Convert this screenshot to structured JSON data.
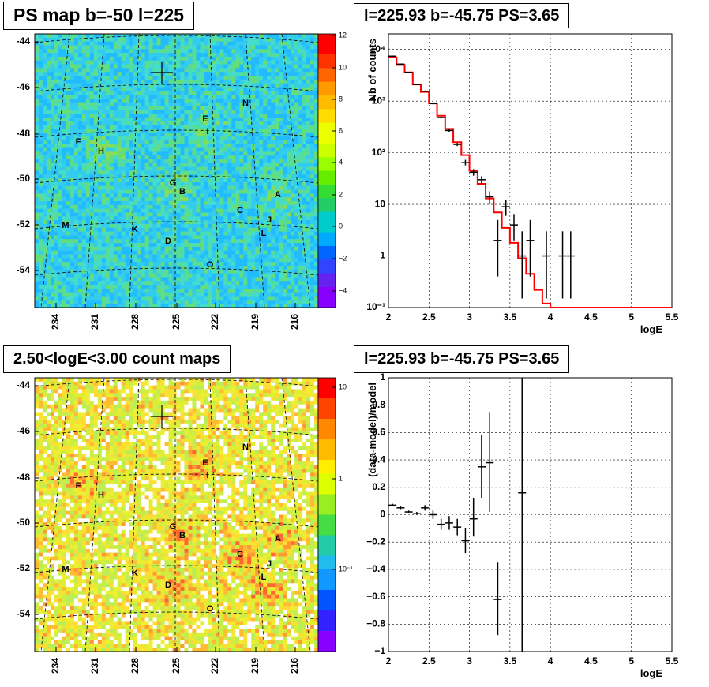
{
  "panels": {
    "tl_title": "PS map b=-50 l=225",
    "tr_title": "l=225.93 b=-45.75 PS=3.65",
    "bl_title": "2.50<logE<3.00 count maps",
    "br_title": "l=225.93 b=-45.75 PS=3.65"
  },
  "colors": {
    "model_line": "#ff0000",
    "data_marker": "#000000",
    "map_top_base": "#33ccee",
    "map_bottom_base": "#ddee33"
  },
  "chart_data": [
    {
      "type": "heatmap",
      "title": "PS map b=-50 l=225",
      "xlabel": "",
      "ylabel": "",
      "x_ticks": [
        "234",
        "231",
        "228",
        "225",
        "222",
        "219",
        "216"
      ],
      "y_ticks": [
        "-44",
        "-46",
        "-48",
        "-50",
        "-52",
        "-54"
      ],
      "colorbar_ticks": [
        "12",
        "10",
        "8",
        "6",
        "4",
        "2",
        "0",
        "−2",
        "−4"
      ],
      "colorbar_range": [
        -5,
        12
      ],
      "sources": [
        "N",
        "E",
        "I",
        "F",
        "H",
        "G",
        "B",
        "A",
        "C",
        "J",
        "M",
        "K",
        "L",
        "D",
        "O"
      ],
      "marker": "+"
    },
    {
      "type": "line",
      "title": "l=225.93 b=-45.75 PS=3.65",
      "xlabel": "logE",
      "ylabel": "Nb of counts",
      "xlim": [
        2,
        5.5
      ],
      "ylim": [
        0.1,
        20000
      ],
      "yscale": "log",
      "x_ticks": [
        "2",
        "2.5",
        "3",
        "3.5",
        "4",
        "4.5",
        "5",
        "5.5"
      ],
      "y_ticks": [
        "10⁻¹",
        "1",
        "10",
        "10²",
        "10³",
        "10⁴"
      ],
      "grid": true,
      "series": [
        {
          "kind": "model-step",
          "x": [
            2.0,
            2.1,
            2.2,
            2.3,
            2.4,
            2.5,
            2.6,
            2.7,
            2.8,
            2.9,
            3.0,
            3.1,
            3.2,
            3.3,
            3.4,
            3.5,
            3.6,
            3.7,
            3.8,
            3.9,
            4.0,
            4.1,
            4.2,
            4.3,
            4.4,
            4.5,
            4.6,
            4.7,
            4.8,
            4.9,
            5.0,
            5.1,
            5.2,
            5.3,
            5.4
          ],
          "values": [
            7000,
            5000,
            3600,
            2100,
            1500,
            900,
            520,
            290,
            160,
            90,
            45,
            25,
            13,
            7,
            3.5,
            1.8,
            0.9,
            0.45,
            0.22,
            0.12,
            0.1,
            0.1,
            0.1,
            0.1,
            0.1,
            0.1,
            0.1,
            0.1,
            0.1,
            0.1,
            0.1,
            0.1,
            0.1,
            0.1,
            0.1
          ]
        },
        {
          "kind": "data-points",
          "x": [
            2.05,
            2.15,
            2.25,
            2.35,
            2.45,
            2.55,
            2.65,
            2.75,
            2.85,
            2.95,
            3.05,
            3.15,
            3.25,
            3.35,
            3.45,
            3.55,
            3.65,
            3.75,
            3.95,
            4.15,
            4.25
          ],
          "y": [
            7400,
            5200,
            3600,
            2100,
            1550,
            900,
            480,
            270,
            145,
            65,
            42,
            30,
            14,
            2,
            9,
            4,
            1,
            2,
            1,
            1,
            1
          ],
          "ylow": [
            7300,
            5100,
            3550,
            2050,
            1500,
            870,
            460,
            255,
            135,
            57,
            36,
            25,
            10,
            0.4,
            6,
            2,
            0.15,
            0.4,
            0.15,
            0.15,
            0.15
          ],
          "yhigh": [
            7500,
            5300,
            3650,
            2150,
            1600,
            930,
            500,
            285,
            155,
            73,
            48,
            35,
            18,
            5,
            12,
            6.5,
            3,
            5,
            3,
            3,
            3
          ]
        }
      ]
    },
    {
      "type": "heatmap",
      "title": "2.50<logE<3.00 count maps",
      "xlabel": "",
      "ylabel": "",
      "x_ticks": [
        "234",
        "231",
        "228",
        "225",
        "222",
        "219",
        "216"
      ],
      "y_ticks": [
        "-44",
        "-46",
        "-48",
        "-50",
        "-52",
        "-54"
      ],
      "colorbar_ticks": [
        "10",
        "1",
        "10⁻¹"
      ],
      "colorbar_scale": "log",
      "sources": [
        "N",
        "E",
        "I",
        "F",
        "H",
        "G",
        "B",
        "A",
        "C",
        "J",
        "M",
        "K",
        "L",
        "D",
        "O"
      ],
      "marker": "+"
    },
    {
      "type": "scatter",
      "title": "l=225.93 b=-45.75 PS=3.65",
      "xlabel": "logE",
      "ylabel": "(data-model)/model",
      "xlim": [
        2,
        5.5
      ],
      "ylim": [
        -1,
        1
      ],
      "x_ticks": [
        "2",
        "2.5",
        "3",
        "3.5",
        "4",
        "4.5",
        "5",
        "5.5"
      ],
      "y_ticks": [
        "−1",
        "−0.8",
        "−0.6",
        "−0.4",
        "−0.2",
        "0",
        "0.2",
        "0.4",
        "0.6",
        "0.8",
        "1"
      ],
      "grid": true,
      "series": [
        {
          "kind": "residuals",
          "x": [
            2.05,
            2.15,
            2.25,
            2.35,
            2.45,
            2.55,
            2.65,
            2.75,
            2.85,
            2.95,
            3.05,
            3.15,
            3.25,
            3.35,
            3.65
          ],
          "y": [
            0.07,
            0.05,
            0.02,
            0.01,
            0.05,
            0.0,
            -0.07,
            -0.06,
            -0.09,
            -0.19,
            -0.03,
            0.35,
            0.38,
            -0.62,
            0.16
          ],
          "ylow": [
            0.06,
            0.04,
            0.01,
            0.0,
            0.03,
            -0.03,
            -0.11,
            -0.11,
            -0.15,
            -0.28,
            -0.16,
            0.12,
            0.02,
            -0.88,
            -1.0
          ],
          "yhigh": [
            0.08,
            0.06,
            0.03,
            0.02,
            0.07,
            0.03,
            -0.03,
            -0.01,
            -0.03,
            -0.1,
            0.12,
            0.58,
            0.75,
            -0.35,
            1.0
          ]
        }
      ]
    }
  ]
}
